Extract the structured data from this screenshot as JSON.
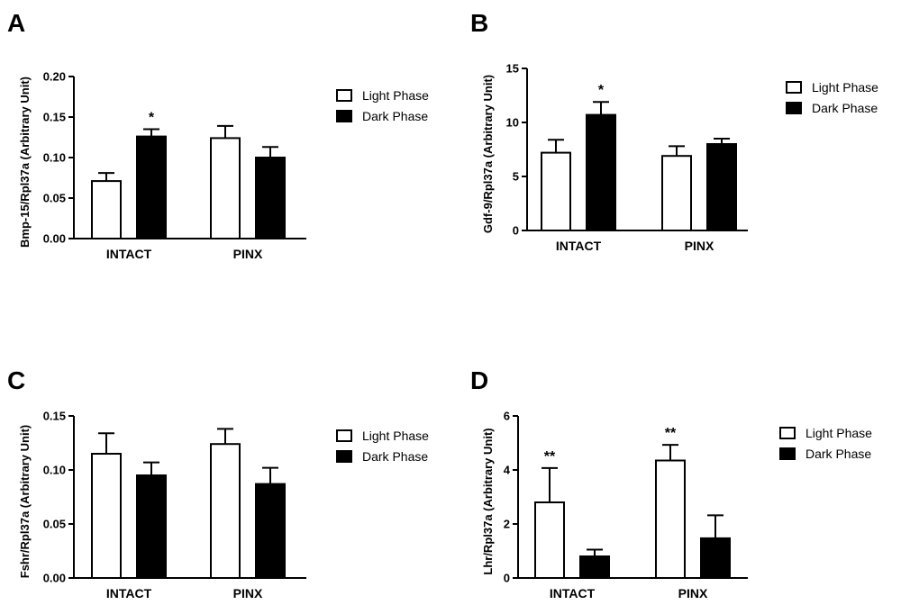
{
  "figure": {
    "panels": [
      "A",
      "B",
      "C",
      "D"
    ]
  },
  "chart_data": [
    {
      "panel": "A",
      "type": "bar",
      "categories": [
        "INTACT",
        "PINX"
      ],
      "series": [
        {
          "name": "Light Phase",
          "color": "#ffffff",
          "values": [
            0.071,
            0.124
          ],
          "errors": [
            0.01,
            0.015
          ]
        },
        {
          "name": "Dark Phase",
          "color": "#000000",
          "values": [
            0.126,
            0.1
          ],
          "errors": [
            0.009,
            0.013
          ]
        }
      ],
      "ylabel": "Bmp-15/Rpl37a (Arbitrary Unit)",
      "ylim": [
        0,
        0.2
      ],
      "yticks": [
        "0.00",
        "0.05",
        "0.10",
        "0.15",
        "0.20"
      ],
      "significance": [
        {
          "category": 0,
          "series": 1,
          "label": "*"
        }
      ],
      "legend": "right"
    },
    {
      "panel": "B",
      "type": "bar",
      "categories": [
        "INTACT",
        "PINX"
      ],
      "series": [
        {
          "name": "Light Phase",
          "color": "#ffffff",
          "values": [
            7.2,
            6.9
          ],
          "errors": [
            1.2,
            0.9
          ]
        },
        {
          "name": "Dark Phase",
          "color": "#000000",
          "values": [
            10.7,
            8.0
          ],
          "errors": [
            1.2,
            0.5
          ]
        }
      ],
      "ylabel": "Gdf-9/Rpl37a (Arbitrary Unit)",
      "ylim": [
        0,
        15
      ],
      "yticks": [
        "0",
        "5",
        "10",
        "15"
      ],
      "significance": [
        {
          "category": 0,
          "series": 1,
          "label": "*"
        }
      ],
      "legend": "right"
    },
    {
      "panel": "C",
      "type": "bar",
      "categories": [
        "INTACT",
        "PINX"
      ],
      "series": [
        {
          "name": "Light Phase",
          "color": "#ffffff",
          "values": [
            0.115,
            0.124
          ],
          "errors": [
            0.019,
            0.014
          ]
        },
        {
          "name": "Dark Phase",
          "color": "#000000",
          "values": [
            0.095,
            0.087
          ],
          "errors": [
            0.012,
            0.015
          ]
        }
      ],
      "ylabel": "Fshr/Rpl37a (Arbitrary Unit)",
      "ylim": [
        0,
        0.15
      ],
      "yticks": [
        "0.00",
        "0.05",
        "0.10",
        "0.15"
      ],
      "significance": [],
      "legend": "right"
    },
    {
      "panel": "D",
      "type": "bar",
      "categories": [
        "INTACT",
        "PINX"
      ],
      "series": [
        {
          "name": "Light Phase",
          "color": "#ffffff",
          "values": [
            2.8,
            4.35
          ],
          "errors": [
            1.27,
            0.58
          ]
        },
        {
          "name": "Dark Phase",
          "color": "#000000",
          "values": [
            0.8,
            1.47
          ],
          "errors": [
            0.25,
            0.85
          ]
        }
      ],
      "ylabel": "Lhr/Rpl37a (Arbitrary Unit)",
      "ylim": [
        0,
        6
      ],
      "yticks": [
        "0",
        "2",
        "4",
        "6"
      ],
      "significance": [
        {
          "category": 0,
          "series": 0,
          "label": "**"
        },
        {
          "category": 1,
          "series": 0,
          "label": "**"
        }
      ],
      "legend": "right"
    }
  ]
}
